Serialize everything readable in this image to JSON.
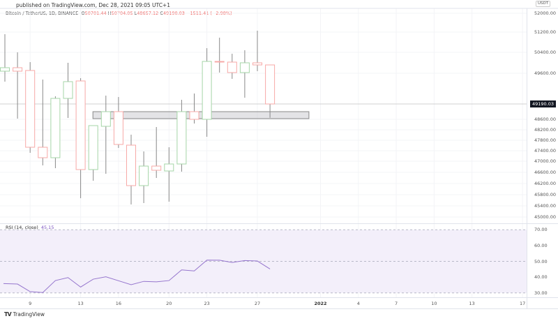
{
  "header": {
    "published": "published on TradingView.com, Dec 28, 2021 09:05 UTC+1"
  },
  "legend": {
    "symbol": "Bitcoin / TetherUS, 1D, BINANCE",
    "o_label": "O",
    "open": "50701.44",
    "h_label": "H",
    "high": "50704.05",
    "l_label": "L",
    "low": "48657.12",
    "c_label": "C",
    "close": "49190.03",
    "change": "−1511.41 (−2.98%)"
  },
  "price_axis": {
    "currency": "USDT",
    "ticks": [
      "52000.00",
      "51200.00",
      "50400.00",
      "49600.00",
      "48600.00",
      "48200.00",
      "47800.00",
      "47400.00",
      "47000.00",
      "46600.00",
      "46200.00",
      "45800.00",
      "45400.00",
      "45000.00"
    ],
    "last_price": "49190.03"
  },
  "rsi": {
    "label": "RSI (14, close)",
    "value": "45.15",
    "ticks": [
      "70.00",
      "60.00",
      "50.00",
      "40.00",
      "30.00"
    ]
  },
  "time_axis": {
    "labels": [
      {
        "text": "9",
        "day": 2
      },
      {
        "text": "13",
        "day": 6
      },
      {
        "text": "16",
        "day": 9
      },
      {
        "text": "20",
        "day": 13
      },
      {
        "text": "23",
        "day": 16
      },
      {
        "text": "27",
        "day": 20
      },
      {
        "text": "2022",
        "day": 25,
        "bold": true
      },
      {
        "text": "4",
        "day": 28
      },
      {
        "text": "7",
        "day": 31
      },
      {
        "text": "10",
        "day": 34
      },
      {
        "text": "13",
        "day": 37
      },
      {
        "text": "17",
        "day": 41
      }
    ]
  },
  "footer": {
    "brand": "TradingView"
  },
  "colors": {
    "up": "#a5d6a7",
    "down": "#f7a9a7",
    "rsi": "#9575cd",
    "rsi_bg": "#f3effa"
  },
  "chart_data": {
    "type": "candlestick",
    "x_start": "2021-12-07",
    "ohlc": [
      [
        50459,
        51890,
        50054,
        50594
      ],
      [
        50594,
        51188,
        48623,
        50459
      ],
      [
        50486,
        50810,
        47300,
        47516
      ],
      [
        47516,
        50135,
        46814,
        47111
      ],
      [
        47111,
        49487,
        46706,
        49406
      ],
      [
        49406,
        50783,
        48650,
        50054
      ],
      [
        50081,
        50189,
        45545,
        46652
      ],
      [
        46652,
        48353,
        46220,
        48353
      ],
      [
        48326,
        49514,
        46490,
        48893
      ],
      [
        48893,
        49460,
        47489,
        47624
      ],
      [
        47597,
        48002,
        45302,
        46031
      ],
      [
        46031,
        47354,
        45356,
        46787
      ],
      [
        46787,
        48299,
        46328,
        46625
      ],
      [
        46598,
        47516,
        45410,
        46868
      ],
      [
        46868,
        49352,
        46571,
        48893
      ],
      [
        48893,
        49595,
        48434,
        48596
      ],
      [
        48596,
        51350,
        47921,
        50837
      ],
      [
        50837,
        51755,
        50405,
        50810
      ],
      [
        50810,
        51134,
        50162,
        50405
      ],
      [
        50405,
        51269,
        49433,
        50783
      ],
      [
        50783,
        52025,
        50459,
        50701
      ],
      [
        50701.44,
        50704.05,
        48657.12,
        49190.03
      ]
    ],
    "zone": {
      "top": 48893,
      "bottom": 48623,
      "start_day": 7,
      "end_day": 24
    },
    "rsi_values": [
      35.9,
      35.6,
      30.8,
      30.2,
      37.8,
      39.7,
      33.7,
      38.7,
      40.2,
      37.7,
      35.2,
      37.3,
      37.0,
      37.8,
      44.6,
      43.9,
      50.8,
      50.7,
      49.3,
      50.5,
      50.2,
      45.15
    ],
    "rsi_range": [
      30,
      70
    ]
  }
}
